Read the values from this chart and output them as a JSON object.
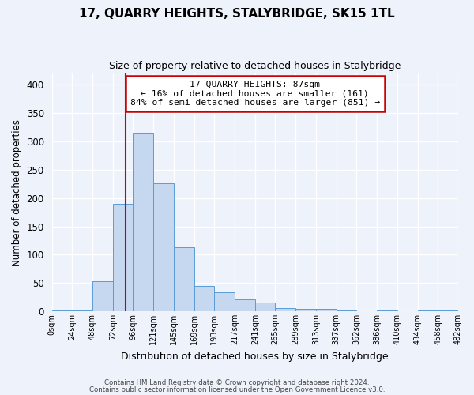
{
  "title": "17, QUARRY HEIGHTS, STALYBRIDGE, SK15 1TL",
  "subtitle": "Size of property relative to detached houses in Stalybridge",
  "xlabel": "Distribution of detached houses by size in Stalybridge",
  "ylabel": "Number of detached properties",
  "bar_edges": [
    0,
    24,
    48,
    72,
    96,
    120,
    144,
    168,
    192,
    216,
    240,
    264,
    288,
    312,
    336,
    360,
    384,
    408,
    432,
    456,
    480
  ],
  "bar_heights": [
    1,
    2,
    53,
    190,
    315,
    226,
    113,
    44,
    33,
    21,
    15,
    5,
    4,
    4,
    1,
    0,
    1,
    0,
    2,
    1
  ],
  "tick_labels": [
    "0sqm",
    "24sqm",
    "48sqm",
    "72sqm",
    "96sqm",
    "121sqm",
    "145sqm",
    "169sqm",
    "193sqm",
    "217sqm",
    "241sqm",
    "265sqm",
    "289sqm",
    "313sqm",
    "337sqm",
    "362sqm",
    "386sqm",
    "410sqm",
    "434sqm",
    "458sqm",
    "482sqm"
  ],
  "bar_color": "#c5d8f0",
  "bar_edge_color": "#5b9bd5",
  "property_line_x": 87,
  "annotation_title": "17 QUARRY HEIGHTS: 87sqm",
  "annotation_line1": "← 16% of detached houses are smaller (161)",
  "annotation_line2": "84% of semi-detached houses are larger (851) →",
  "annotation_box_color": "#ffffff",
  "annotation_box_edge_color": "#cc0000",
  "vline_color": "#cc0000",
  "ylim": [
    0,
    420
  ],
  "yticks": [
    0,
    50,
    100,
    150,
    200,
    250,
    300,
    350,
    400
  ],
  "footer1": "Contains HM Land Registry data © Crown copyright and database right 2024.",
  "footer2": "Contains public sector information licensed under the Open Government Licence v3.0.",
  "bg_color": "#eef2fb",
  "grid_color": "#ffffff"
}
